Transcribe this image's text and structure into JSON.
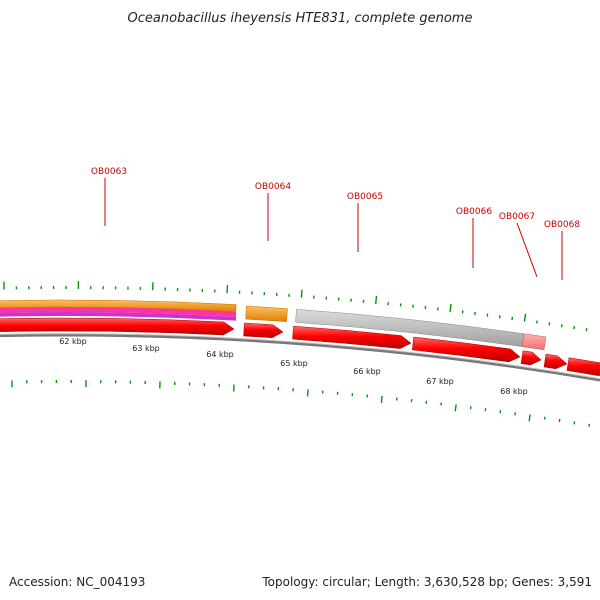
{
  "title": "Oceanobacillus iheyensis HTE831, complete genome",
  "footer": {
    "accession": "Accession: NC_004193",
    "summary": "Topology: circular; Length: 3,630,528 bp; Genes: 3,591"
  },
  "genes": [
    {
      "id": "OB0063"
    },
    {
      "id": "OB0064"
    },
    {
      "id": "OB0065"
    },
    {
      "id": "OB0066"
    },
    {
      "id": "OB0067"
    },
    {
      "id": "OB0068"
    }
  ],
  "scale_labels": [
    "62 kbp",
    "63 kbp",
    "64 kbp",
    "65 kbp",
    "66 kbp",
    "67 kbp",
    "68 kbp"
  ],
  "colors": {
    "cds": "#ff0000",
    "orange_track": "#ff9900",
    "pink_track": "#ff3399",
    "magenta_track": "#cc33cc",
    "gray_feature": "#bbbbbb",
    "pink_feature": "#ff8888",
    "backbone": "#777777",
    "tick": "#009900",
    "label": "#cc0000"
  }
}
